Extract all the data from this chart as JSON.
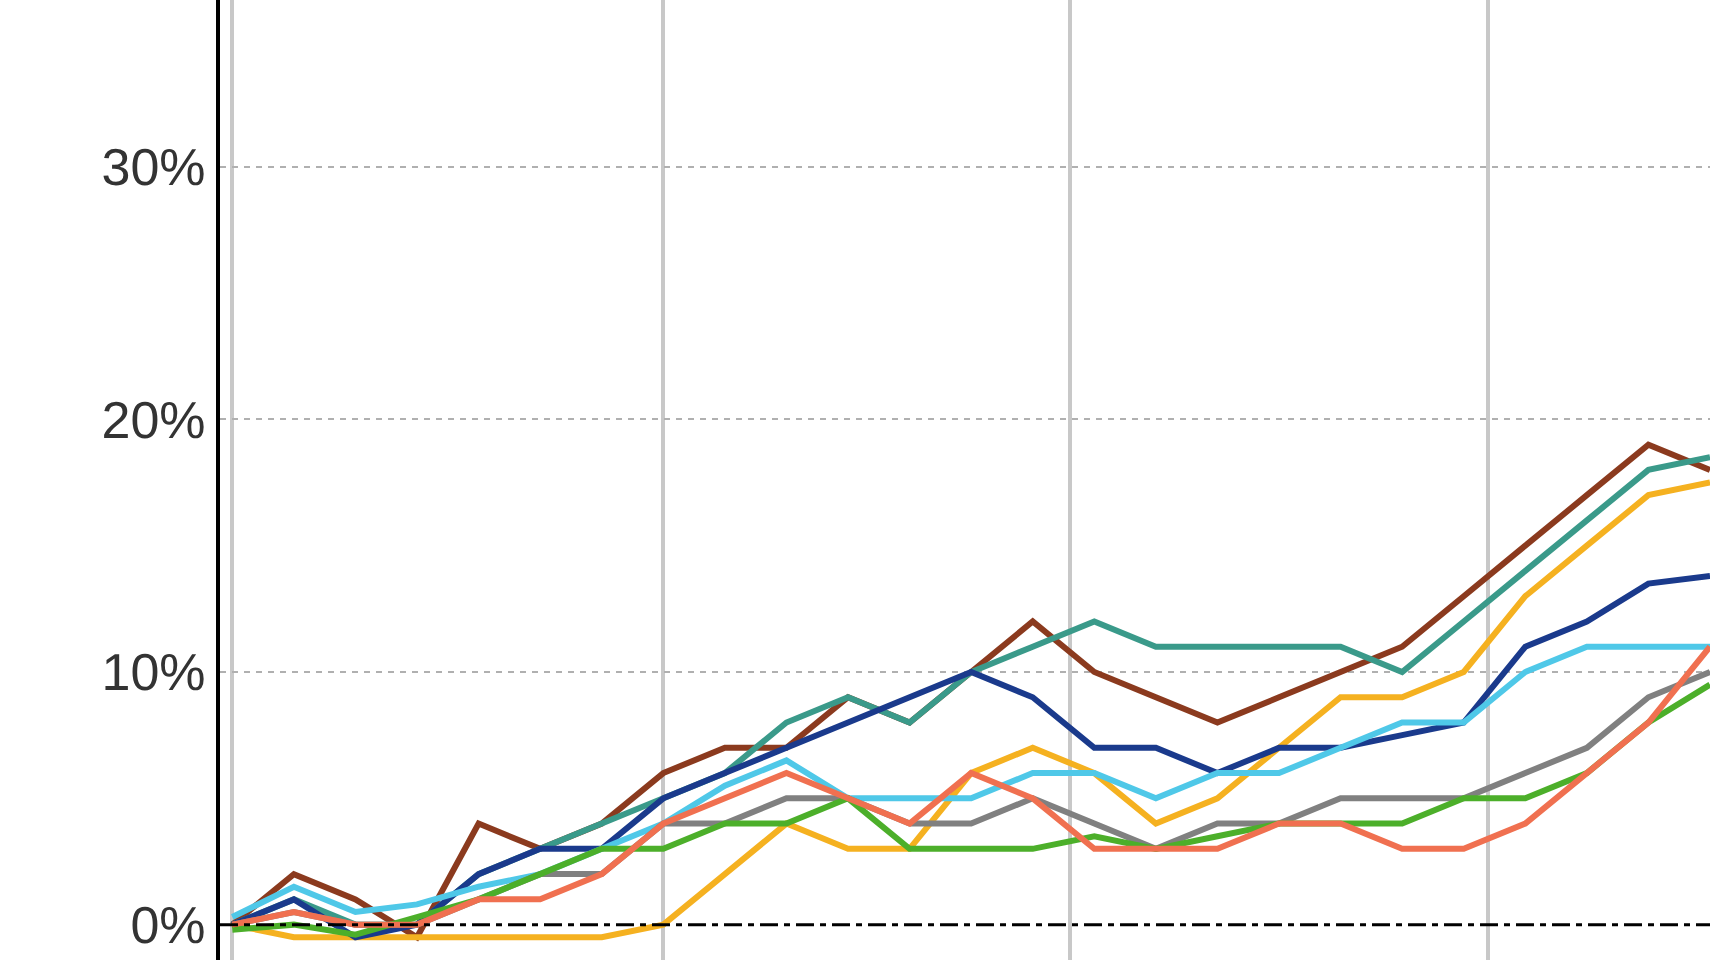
{
  "chart_data": {
    "type": "line",
    "categories": [
      null,
      null,
      null,
      null,
      null,
      null,
      null,
      null,
      null,
      null,
      null,
      null,
      null,
      null,
      null,
      null,
      null,
      null,
      null,
      null,
      null,
      null,
      null,
      null,
      null
    ],
    "series": [
      {
        "color": "#8b3a1e",
        "values": [
          0,
          2,
          1,
          -0.5,
          4,
          3,
          4,
          6,
          7,
          7,
          9,
          8,
          10,
          12,
          10,
          9,
          8,
          9,
          10,
          11,
          13,
          15,
          17,
          19,
          18
        ]
      },
      {
        "color": "#3a9a8a",
        "values": [
          0,
          1,
          0,
          0,
          2,
          3,
          4,
          5,
          6,
          8,
          9,
          8,
          10,
          11,
          12,
          11,
          11,
          11,
          11,
          10,
          12,
          14,
          16,
          18,
          18.5
        ]
      },
      {
        "color": "#f5b120",
        "values": [
          0,
          -0.5,
          -0.5,
          -0.5,
          -0.5,
          -0.5,
          -0.5,
          0,
          2,
          4,
          3,
          3,
          6,
          7,
          6,
          4,
          5,
          7,
          9,
          9,
          10,
          13,
          15,
          17,
          17.5
        ]
      },
      {
        "color": "#1a3a8c",
        "values": [
          0,
          1,
          -0.5,
          0,
          2,
          3,
          3,
          5,
          6,
          7,
          8,
          9,
          10,
          9,
          7,
          7,
          6,
          7,
          7,
          7.5,
          8,
          11,
          12,
          13.5,
          13.8
        ]
      },
      {
        "color": "#4fc8e8",
        "values": [
          0.3,
          1.5,
          0.5,
          0.8,
          1.5,
          2,
          3,
          4,
          5.5,
          6.5,
          5,
          5,
          5,
          6,
          6,
          5,
          6,
          6,
          7,
          8,
          8,
          10,
          11,
          11,
          11
        ]
      },
      {
        "color": "#808080",
        "values": [
          0,
          0.5,
          0,
          0,
          1,
          2,
          2,
          4,
          4,
          5,
          5,
          4,
          4,
          5,
          4,
          3,
          4,
          4,
          5,
          5,
          5,
          6,
          7,
          9,
          10
        ]
      },
      {
        "color": "#4caf2a",
        "values": [
          -0.2,
          0,
          -0.4,
          0.3,
          1,
          2,
          3,
          3,
          4,
          4,
          5,
          3,
          3,
          3,
          3.5,
          3,
          3.5,
          4,
          4,
          4,
          5,
          5,
          6,
          8,
          9.5
        ]
      },
      {
        "color": "#f07050",
        "values": [
          0,
          0.5,
          0,
          0,
          1,
          1,
          2,
          4,
          5,
          6,
          5,
          4,
          6,
          5,
          3,
          3,
          3,
          4,
          4,
          3,
          3,
          4,
          6,
          8,
          11
        ]
      }
    ],
    "ylim": [
      -1.4,
      36.6
    ],
    "yticks": [
      {
        "value": 0,
        "label": "0%"
      },
      {
        "value": 10,
        "label": "10%"
      },
      {
        "value": 20,
        "label": "20%"
      },
      {
        "value": 30,
        "label": "30%"
      }
    ],
    "grid": true,
    "tick_labels": "y",
    "line_style": "solid",
    "ref_lines": [
      {
        "axis": "y",
        "value": 0,
        "color": "#000000",
        "line_style": "dashdot"
      }
    ]
  }
}
